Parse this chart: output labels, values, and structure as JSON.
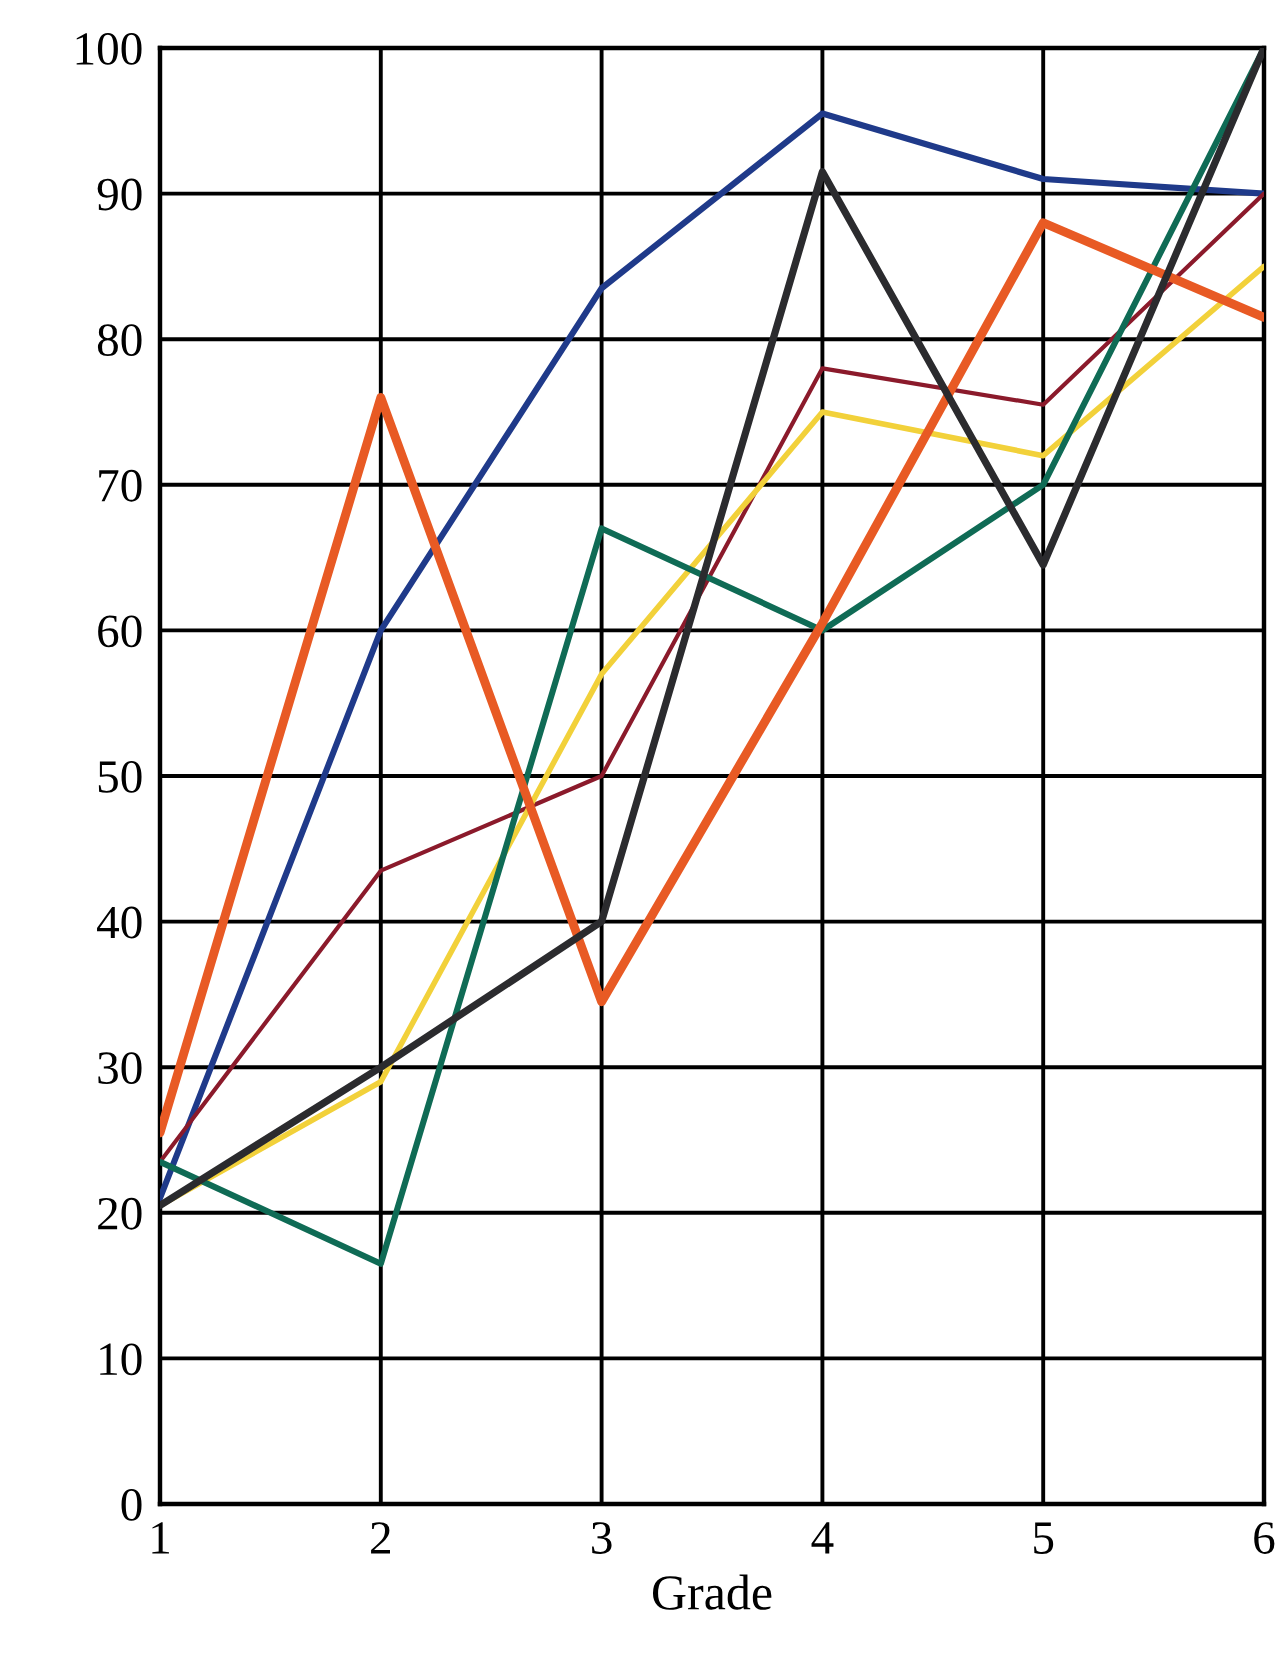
{
  "chart_data": {
    "type": "line",
    "xlabel": "Grade",
    "x": [
      1,
      2,
      3,
      4,
      5,
      6
    ],
    "series": [
      {
        "color": "#1f3a8a",
        "values": [
          21,
          60,
          83.5,
          95.5,
          91,
          90
        ]
      },
      {
        "color": "#8b1a2b",
        "values": [
          23.5,
          43.5,
          50,
          78,
          75.5,
          90
        ]
      },
      {
        "color": "#f2d13a",
        "values": [
          20.5,
          29,
          57,
          75,
          72,
          85
        ]
      },
      {
        "color": "#0f6b55",
        "values": [
          23.5,
          16.5,
          67,
          60,
          70,
          100
        ]
      },
      {
        "color": "#e85a24",
        "values": [
          25.5,
          76,
          34.5,
          60.5,
          88,
          81.5
        ]
      },
      {
        "color": "#2b2b2e",
        "values": [
          20.5,
          30,
          40,
          91.5,
          64.5,
          100
        ]
      }
    ],
    "xlim": [
      1,
      6
    ],
    "xticks": [
      1,
      2,
      3,
      4,
      5,
      6
    ],
    "ylim": [
      0,
      100
    ],
    "yticks": [
      0,
      10,
      20,
      30,
      40,
      50,
      60,
      70,
      80,
      90,
      100
    ],
    "grid": true,
    "marker": "none",
    "line_style": "solid"
  }
}
